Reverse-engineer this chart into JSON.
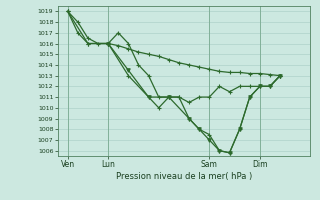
{
  "background_color": "#cce8e0",
  "grid_color": "#a8ccc4",
  "line_color": "#2d6a2d",
  "marker_color": "#2d6a2d",
  "xlabel": "Pression niveau de la mer( hPa )",
  "ylim": [
    1005.5,
    1019.5
  ],
  "yticks": [
    1006,
    1007,
    1008,
    1009,
    1010,
    1011,
    1012,
    1013,
    1014,
    1015,
    1016,
    1017,
    1018,
    1019
  ],
  "xtick_labels": [
    "Ven",
    "Lun",
    "Sam",
    "Dim"
  ],
  "xtick_positions": [
    1,
    5,
    15,
    20
  ],
  "xlim": [
    0,
    25
  ],
  "series1_x": [
    1,
    2,
    3,
    4,
    5,
    6,
    7,
    8,
    9,
    10,
    11,
    12,
    13,
    14,
    15,
    16,
    17,
    18,
    19,
    20,
    21,
    22
  ],
  "series1_y": [
    1019,
    1018,
    1016.5,
    1016,
    1016,
    1015.8,
    1015.5,
    1015.2,
    1015,
    1014.8,
    1014.5,
    1014.2,
    1014,
    1013.8,
    1013.6,
    1013.4,
    1013.3,
    1013.3,
    1013.2,
    1013.2,
    1013.1,
    1013
  ],
  "series2_x": [
    1,
    2,
    3,
    5,
    6,
    7,
    8,
    9,
    10,
    11,
    12,
    13,
    14,
    15,
    16,
    17,
    18,
    19,
    20,
    21,
    22
  ],
  "series2_y": [
    1019,
    1017,
    1016,
    1016,
    1017,
    1016,
    1014,
    1013,
    1011,
    1011,
    1011,
    1010.5,
    1011,
    1011,
    1012,
    1011.5,
    1012,
    1012,
    1012,
    1012,
    1013
  ],
  "series3_x": [
    1,
    3,
    5,
    7,
    9,
    10,
    11,
    12,
    13,
    14,
    15,
    16,
    17,
    18,
    19,
    20,
    21,
    22
  ],
  "series3_y": [
    1019,
    1016,
    1016,
    1013,
    1011,
    1010,
    1011,
    1011,
    1009,
    1008,
    1007.5,
    1006,
    1005.8,
    1008,
    1011,
    1012,
    1012,
    1013
  ],
  "series4_x": [
    5,
    7,
    9,
    11,
    13,
    14,
    15,
    16,
    17,
    18,
    19,
    20,
    21,
    22
  ],
  "series4_y": [
    1016,
    1013.5,
    1011,
    1011,
    1009,
    1008,
    1007,
    1006,
    1005.8,
    1008,
    1011,
    1012,
    1012,
    1013
  ]
}
